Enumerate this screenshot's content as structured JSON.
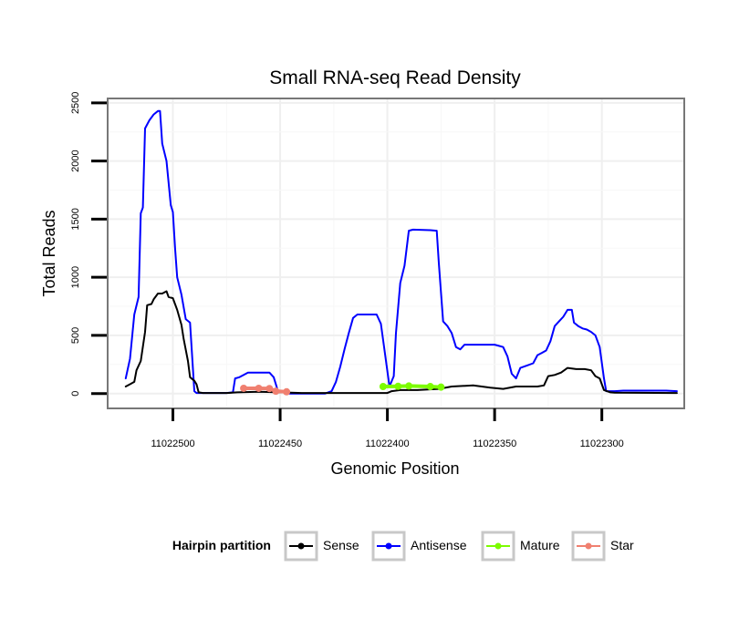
{
  "chart_data": {
    "type": "line",
    "title": "Small RNA-seq Read Density",
    "xlabel": "Genomic Position",
    "ylabel": "Total Reads",
    "xlim": [
      11022530,
      11022262
    ],
    "x_reversed": true,
    "ylim": [
      -120,
      2530
    ],
    "x_ticks": [
      11022500,
      11022450,
      11022400,
      11022350,
      11022300
    ],
    "y_ticks": [
      0,
      500,
      1000,
      1500,
      2000,
      2500
    ],
    "grid": true,
    "legend": {
      "title": "Hairpin partition",
      "placement": "bottom",
      "entries": [
        {
          "name": "Sense",
          "color": "#000000"
        },
        {
          "name": "Antisense",
          "color": "#0000ff"
        },
        {
          "name": "Mature",
          "color": "#7cfc00"
        },
        {
          "name": "Star",
          "color": "#f08070"
        }
      ]
    },
    "series": [
      {
        "name": "Antisense",
        "color": "#0000ff",
        "points": [
          [
            11022522,
            130
          ],
          [
            11022520,
            300
          ],
          [
            11022518,
            680
          ],
          [
            11022516,
            830
          ],
          [
            11022515,
            1550
          ],
          [
            11022514,
            1600
          ],
          [
            11022513,
            2280
          ],
          [
            11022511,
            2350
          ],
          [
            11022509,
            2400
          ],
          [
            11022507,
            2430
          ],
          [
            11022506,
            2430
          ],
          [
            11022505,
            2150
          ],
          [
            11022503,
            2000
          ],
          [
            11022501,
            1620
          ],
          [
            11022500,
            1560
          ],
          [
            11022499,
            1250
          ],
          [
            11022498,
            1000
          ],
          [
            11022496,
            850
          ],
          [
            11022494,
            640
          ],
          [
            11022492,
            610
          ],
          [
            11022490,
            20
          ],
          [
            11022489,
            5
          ],
          [
            11022486,
            5
          ],
          [
            11022475,
            5
          ],
          [
            11022472,
            10
          ],
          [
            11022471,
            130
          ],
          [
            11022469,
            140
          ],
          [
            11022467,
            160
          ],
          [
            11022465,
            180
          ],
          [
            11022455,
            180
          ],
          [
            11022453,
            140
          ],
          [
            11022451,
            20
          ],
          [
            11022448,
            10
          ],
          [
            11022447,
            0
          ],
          [
            11022429,
            0
          ],
          [
            11022426,
            20
          ],
          [
            11022424,
            100
          ],
          [
            11022422,
            230
          ],
          [
            11022420,
            380
          ],
          [
            11022418,
            520
          ],
          [
            11022416,
            650
          ],
          [
            11022414,
            680
          ],
          [
            11022405,
            680
          ],
          [
            11022403,
            600
          ],
          [
            11022401,
            330
          ],
          [
            11022399,
            60
          ],
          [
            11022397,
            150
          ],
          [
            11022396,
            520
          ],
          [
            11022394,
            950
          ],
          [
            11022392,
            1100
          ],
          [
            11022390,
            1400
          ],
          [
            11022388,
            1410
          ],
          [
            11022380,
            1405
          ],
          [
            11022377,
            1400
          ],
          [
            11022376,
            1120
          ],
          [
            11022374,
            620
          ],
          [
            11022372,
            580
          ],
          [
            11022370,
            520
          ],
          [
            11022368,
            400
          ],
          [
            11022366,
            380
          ],
          [
            11022364,
            420
          ],
          [
            11022350,
            420
          ],
          [
            11022348,
            410
          ],
          [
            11022346,
            400
          ],
          [
            11022344,
            320
          ],
          [
            11022342,
            170
          ],
          [
            11022340,
            130
          ],
          [
            11022338,
            220
          ],
          [
            11022335,
            240
          ],
          [
            11022332,
            260
          ],
          [
            11022330,
            330
          ],
          [
            11022328,
            350
          ],
          [
            11022326,
            370
          ],
          [
            11022324,
            450
          ],
          [
            11022322,
            580
          ],
          [
            11022320,
            620
          ],
          [
            11022318,
            660
          ],
          [
            11022316,
            720
          ],
          [
            11022314,
            720
          ],
          [
            11022313,
            610
          ],
          [
            11022311,
            580
          ],
          [
            11022309,
            560
          ],
          [
            11022307,
            550
          ],
          [
            11022305,
            530
          ],
          [
            11022303,
            500
          ],
          [
            11022301,
            400
          ],
          [
            11022299,
            130
          ],
          [
            11022298,
            20
          ],
          [
            11022294,
            20
          ],
          [
            11022290,
            25
          ],
          [
            11022270,
            25
          ],
          [
            11022265,
            20
          ]
        ]
      },
      {
        "name": "Sense",
        "color": "#000000",
        "points": [
          [
            11022522,
            60
          ],
          [
            11022520,
            80
          ],
          [
            11022518,
            100
          ],
          [
            11022517,
            200
          ],
          [
            11022515,
            280
          ],
          [
            11022513,
            530
          ],
          [
            11022512,
            760
          ],
          [
            11022510,
            770
          ],
          [
            11022509,
            810
          ],
          [
            11022507,
            860
          ],
          [
            11022505,
            860
          ],
          [
            11022503,
            880
          ],
          [
            11022502,
            830
          ],
          [
            11022500,
            820
          ],
          [
            11022498,
            720
          ],
          [
            11022496,
            590
          ],
          [
            11022495,
            470
          ],
          [
            11022493,
            280
          ],
          [
            11022492,
            140
          ],
          [
            11022490,
            110
          ],
          [
            11022489,
            80
          ],
          [
            11022488,
            10
          ],
          [
            11022486,
            5
          ],
          [
            11022475,
            5
          ],
          [
            11022470,
            10
          ],
          [
            11022460,
            15
          ],
          [
            11022450,
            10
          ],
          [
            11022440,
            5
          ],
          [
            11022400,
            5
          ],
          [
            11022398,
            20
          ],
          [
            11022394,
            30
          ],
          [
            11022386,
            30
          ],
          [
            11022376,
            40
          ],
          [
            11022370,
            60
          ],
          [
            11022360,
            70
          ],
          [
            11022352,
            50
          ],
          [
            11022346,
            40
          ],
          [
            11022340,
            60
          ],
          [
            11022334,
            60
          ],
          [
            11022330,
            60
          ],
          [
            11022327,
            70
          ],
          [
            11022325,
            150
          ],
          [
            11022322,
            160
          ],
          [
            11022319,
            180
          ],
          [
            11022316,
            220
          ],
          [
            11022312,
            210
          ],
          [
            11022308,
            210
          ],
          [
            11022305,
            200
          ],
          [
            11022303,
            150
          ],
          [
            11022301,
            130
          ],
          [
            11022299,
            30
          ],
          [
            11022296,
            10
          ],
          [
            11022294,
            8
          ],
          [
            11022265,
            5
          ]
        ]
      },
      {
        "name": "Mature",
        "color": "#7cfc00",
        "points": [
          [
            11022402,
            60
          ],
          [
            11022395,
            62
          ],
          [
            11022390,
            65
          ],
          [
            11022380,
            60
          ],
          [
            11022375,
            55
          ]
        ]
      },
      {
        "name": "Star",
        "color": "#f08070",
        "points": [
          [
            11022467,
            45
          ],
          [
            11022460,
            45
          ],
          [
            11022455,
            43
          ],
          [
            11022452,
            20
          ],
          [
            11022447,
            15
          ]
        ]
      }
    ]
  }
}
